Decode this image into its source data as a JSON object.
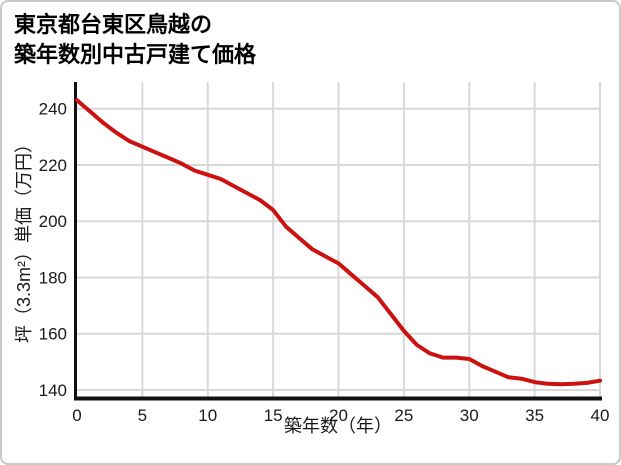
{
  "window": {
    "background": "#ffffff",
    "border_color": "#c9c9c9"
  },
  "chart_data": {
    "type": "line",
    "title_lines": [
      "東京都台東区鳥越の",
      "築年数別中古戸建て価格"
    ],
    "xlabel": "築年数（年）",
    "ylabel": "坪（3.3m²）単価（万円）",
    "x": [
      0,
      1,
      2,
      3,
      4,
      5,
      6,
      7,
      8,
      9,
      10,
      11,
      12,
      13,
      14,
      15,
      16,
      17,
      18,
      19,
      20,
      21,
      22,
      23,
      24,
      25,
      26,
      27,
      28,
      29,
      30,
      31,
      32,
      33,
      34,
      35,
      36,
      37,
      38,
      39,
      40
    ],
    "values": [
      243,
      239,
      235,
      231.5,
      228.5,
      226.5,
      224.5,
      222.5,
      220.5,
      218,
      216.5,
      215,
      212.5,
      210,
      207.5,
      204,
      198,
      194,
      190,
      187.5,
      185,
      181,
      177,
      173,
      167,
      161,
      156,
      153,
      151.5,
      151.5,
      151,
      148.5,
      146.5,
      144.5,
      144,
      142.8,
      142.2,
      142,
      142.2,
      142.5,
      143.3
    ],
    "xlim": [
      0,
      40
    ],
    "ylim": [
      137.5,
      249.5
    ],
    "xticks": [
      0,
      5,
      10,
      15,
      20,
      25,
      30,
      35,
      40
    ],
    "yticks": [
      140,
      160,
      180,
      200,
      220,
      240
    ],
    "grid": true,
    "legend": false,
    "line_color": "#cc1111",
    "line_width": 4,
    "axis_color": "#111111",
    "grid_color": "#d8d8d8",
    "tick_color": "#1a1a1a"
  }
}
